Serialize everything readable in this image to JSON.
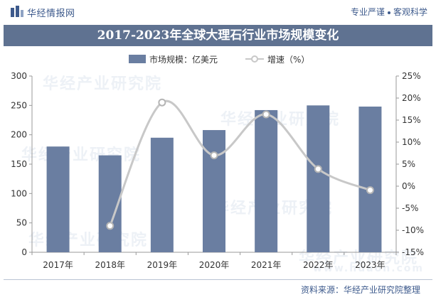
{
  "header": {
    "brand": "华经情报网",
    "tagline_left": "专业严谨",
    "tagline_right": "客观科学"
  },
  "title": "2017-2023年全球大理石行业市场规模变化",
  "watermark": "华经产业研究院",
  "watermark_url": "www.huaon.com",
  "source": "资料来源：华经产业研究院整理",
  "colors": {
    "bar": "#6a7ea1",
    "line": "#c8c8c8",
    "title_band": "#5f7291",
    "brand_text": "#3d5a8c"
  },
  "chart_data": {
    "type": "bar",
    "categories": [
      "2017年",
      "2018年",
      "2019年",
      "2020年",
      "2021年",
      "2022年",
      "2023年"
    ],
    "series": [
      {
        "name": "市场规模：亿美元",
        "type": "bar",
        "axis": "left",
        "values": [
          180,
          165,
          195,
          208,
          242,
          250,
          248
        ]
      },
      {
        "name": "增速（%）",
        "type": "line",
        "axis": "right",
        "values": [
          null,
          -9.0,
          19.0,
          7.0,
          16.3,
          3.9,
          -0.9
        ]
      }
    ],
    "ylim_left": [
      0,
      300
    ],
    "yticks_left": [
      "0",
      "50",
      "100",
      "150",
      "200",
      "250",
      "300"
    ],
    "ylim_right": [
      -15,
      25
    ],
    "yticks_right": [
      "-15%",
      "-10%",
      "-5%",
      "0%",
      "5%",
      "10%",
      "15%",
      "20%",
      "25%"
    ],
    "legend_position": "top-center",
    "grid": false
  }
}
